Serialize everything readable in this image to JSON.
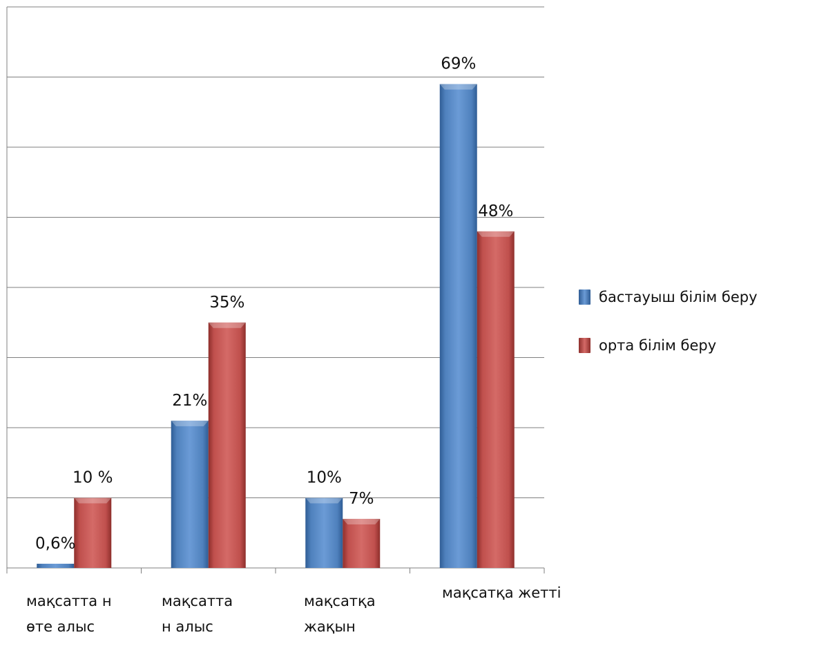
{
  "chart_data": {
    "type": "bar",
    "categories": [
      [
        "мақсатта н",
        "өте алыс"
      ],
      [
        "мақсатта",
        "н алыс"
      ],
      [
        "мақсатқа",
        "жақын"
      ],
      [
        "мақсатқа жетті"
      ]
    ],
    "series": [
      {
        "name": "бастауыш білім беру",
        "color": "#4f81bd",
        "values": [
          0.6,
          21,
          10,
          69
        ],
        "labels": [
          "0,6%",
          "21%",
          "10%",
          "69%"
        ]
      },
      {
        "name": "орта білім беру",
        "color": "#c0504d",
        "values": [
          10,
          35,
          7,
          48
        ],
        "labels": [
          "10 %",
          "35%",
          "7%",
          "48%"
        ]
      }
    ],
    "ylim": [
      0,
      80
    ],
    "grid": true,
    "legend": "right"
  }
}
